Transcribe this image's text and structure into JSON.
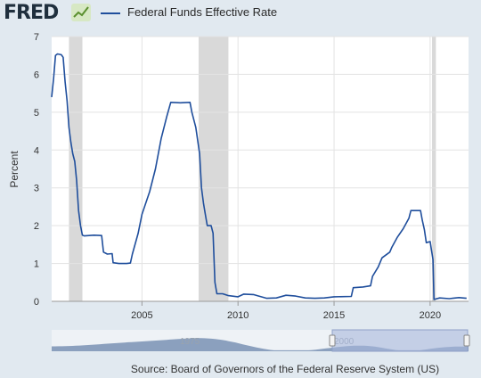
{
  "header": {
    "logo_text": "FRED",
    "logo_badge": "chart-line-icon"
  },
  "chart_data": {
    "type": "line",
    "xlabel": "",
    "ylabel": "Percent",
    "xlim": [
      2000.3,
      2022.0
    ],
    "ylim": [
      0,
      7
    ],
    "y_ticks": [
      0,
      1,
      2,
      3,
      4,
      5,
      6,
      7
    ],
    "x_ticks": [
      2005,
      2010,
      2015,
      2020
    ],
    "grid": true,
    "legend_position": "top-left",
    "recessions": [
      [
        2001.2,
        2001.9
      ],
      [
        2007.95,
        2009.5
      ],
      [
        2020.1,
        2020.3
      ]
    ],
    "series": [
      {
        "name": "Federal Funds Effective Rate",
        "color": "#1f4e9c",
        "points": [
          [
            2000.3,
            5.4
          ],
          [
            2000.4,
            5.9
          ],
          [
            2000.5,
            6.5
          ],
          [
            2000.6,
            6.54
          ],
          [
            2000.8,
            6.52
          ],
          [
            2000.9,
            6.45
          ],
          [
            2001.0,
            5.8
          ],
          [
            2001.1,
            5.3
          ],
          [
            2001.2,
            4.6
          ],
          [
            2001.3,
            4.2
          ],
          [
            2001.4,
            3.9
          ],
          [
            2001.5,
            3.7
          ],
          [
            2001.6,
            3.2
          ],
          [
            2001.7,
            2.4
          ],
          [
            2001.8,
            2.0
          ],
          [
            2001.9,
            1.75
          ],
          [
            2002.0,
            1.73
          ],
          [
            2002.5,
            1.75
          ],
          [
            2002.9,
            1.74
          ],
          [
            2003.0,
            1.3
          ],
          [
            2003.2,
            1.25
          ],
          [
            2003.45,
            1.26
          ],
          [
            2003.5,
            1.02
          ],
          [
            2003.8,
            1.0
          ],
          [
            2004.2,
            1.0
          ],
          [
            2004.4,
            1.01
          ],
          [
            2004.5,
            1.25
          ],
          [
            2004.8,
            1.8
          ],
          [
            2005.0,
            2.3
          ],
          [
            2005.4,
            2.9
          ],
          [
            2005.7,
            3.5
          ],
          [
            2006.0,
            4.3
          ],
          [
            2006.3,
            4.9
          ],
          [
            2006.5,
            5.26
          ],
          [
            2007.0,
            5.25
          ],
          [
            2007.5,
            5.26
          ],
          [
            2007.6,
            5.0
          ],
          [
            2007.8,
            4.6
          ],
          [
            2008.0,
            3.9
          ],
          [
            2008.1,
            3.0
          ],
          [
            2008.2,
            2.6
          ],
          [
            2008.3,
            2.3
          ],
          [
            2008.4,
            2.0
          ],
          [
            2008.6,
            2.0
          ],
          [
            2008.7,
            1.8
          ],
          [
            2008.8,
            0.5
          ],
          [
            2008.9,
            0.2
          ],
          [
            2009.2,
            0.2
          ],
          [
            2009.5,
            0.15
          ],
          [
            2010.0,
            0.12
          ],
          [
            2010.3,
            0.19
          ],
          [
            2010.8,
            0.18
          ],
          [
            2011.0,
            0.15
          ],
          [
            2011.5,
            0.08
          ],
          [
            2012.0,
            0.09
          ],
          [
            2012.5,
            0.16
          ],
          [
            2013.0,
            0.14
          ],
          [
            2013.5,
            0.09
          ],
          [
            2014.0,
            0.08
          ],
          [
            2014.5,
            0.09
          ],
          [
            2015.0,
            0.12
          ],
          [
            2015.9,
            0.13
          ],
          [
            2016.0,
            0.36
          ],
          [
            2016.5,
            0.38
          ],
          [
            2016.9,
            0.41
          ],
          [
            2017.0,
            0.66
          ],
          [
            2017.3,
            0.91
          ],
          [
            2017.5,
            1.15
          ],
          [
            2017.9,
            1.3
          ],
          [
            2018.0,
            1.42
          ],
          [
            2018.3,
            1.7
          ],
          [
            2018.6,
            1.92
          ],
          [
            2018.9,
            2.2
          ],
          [
            2019.0,
            2.4
          ],
          [
            2019.5,
            2.4
          ],
          [
            2019.6,
            2.13
          ],
          [
            2019.7,
            1.9
          ],
          [
            2019.8,
            1.55
          ],
          [
            2020.0,
            1.58
          ],
          [
            2020.15,
            1.1
          ],
          [
            2020.2,
            0.05
          ],
          [
            2020.5,
            0.09
          ],
          [
            2021.0,
            0.07
          ],
          [
            2021.5,
            0.1
          ],
          [
            2021.9,
            0.08
          ]
        ]
      }
    ],
    "navigator": {
      "labels": [
        "1975",
        "2000"
      ],
      "selection": [
        2000.3,
        2022.0
      ]
    },
    "source": "Source: Board of Governors of the Federal Reserve System (US)"
  },
  "colors": {
    "line": "#1f4e9c",
    "recession": "#d9d9d9",
    "plot_bg": "#ffffff",
    "page_bg": "#e1e9f0",
    "navigator_fill": "#3a5d8f",
    "navigator_selection": "#a9b7dc"
  }
}
